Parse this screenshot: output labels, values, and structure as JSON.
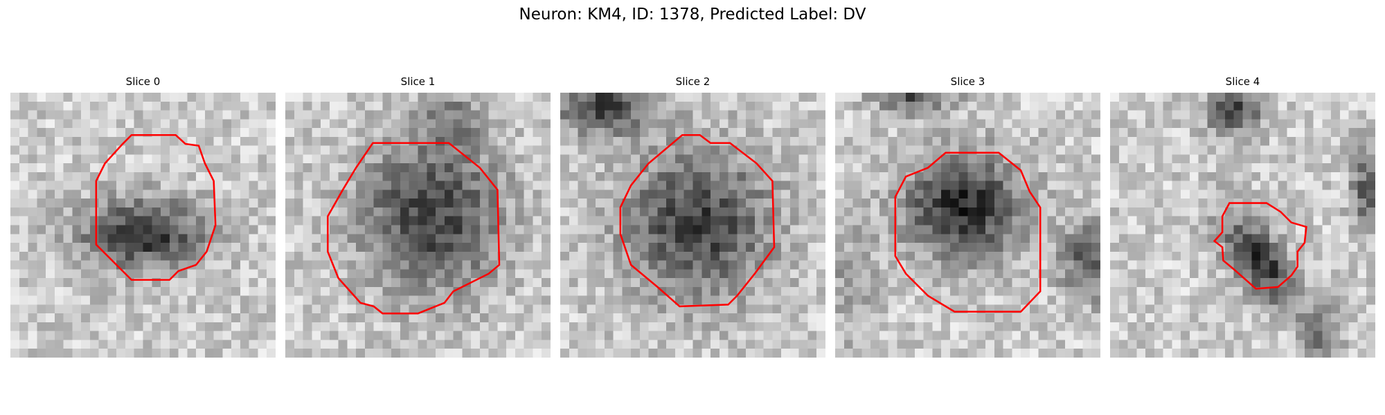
{
  "title": "Neuron: KM4, ID: 1378, Predicted Label: DV",
  "panels": [
    {
      "title": "Slice 0"
    },
    {
      "title": "Slice 1"
    },
    {
      "title": "Slice 2"
    },
    {
      "title": "Slice 3"
    },
    {
      "title": "Slice 4"
    }
  ]
}
